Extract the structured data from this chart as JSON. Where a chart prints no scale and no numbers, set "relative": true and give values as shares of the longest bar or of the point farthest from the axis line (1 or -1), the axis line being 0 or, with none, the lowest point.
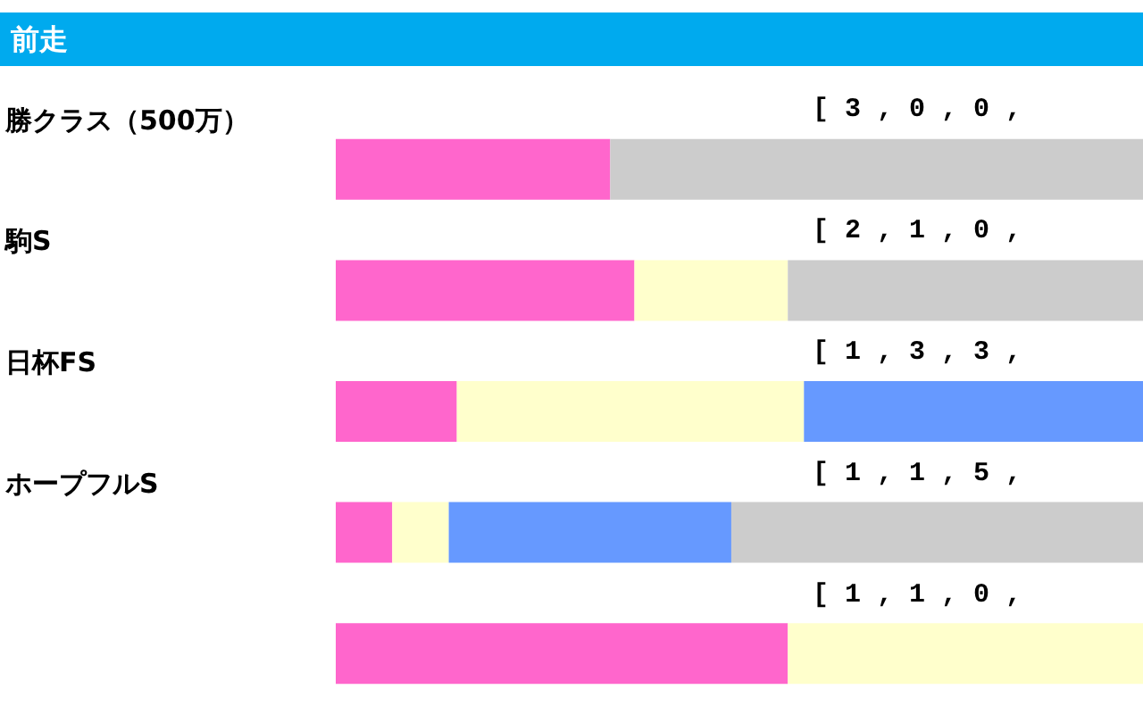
{
  "chart_data": {
    "type": "bar",
    "title": "前走",
    "orientation": "horizontal",
    "stacked": true,
    "relative": true,
    "categories": [
      "勝クラス（500万）",
      "駒S",
      "日杯FS",
      "ホープフルS",
      null
    ],
    "series": [
      {
        "color": "#ff66cc",
        "values": [
          0.34,
          0.37,
          0.15,
          0.07,
          0.56
        ]
      },
      {
        "color": "#ffffcc",
        "values": [
          0,
          0.19,
          0.43,
          0.07,
          0.44
        ]
      },
      {
        "color": "#6699ff",
        "values": [
          0,
          0,
          0.42,
          0.35,
          0
        ]
      },
      {
        "color": "#cccccc",
        "values": [
          0.66,
          0.44,
          0,
          0.51,
          0
        ]
      }
    ],
    "annotations": [
      "[ 3 , 0 , 0 ,",
      "[ 2 , 1 , 0 ,",
      "[ 1 , 3 , 3 ,",
      "[ 1 , 1 , 5 ,",
      "[ 1 , 1 , 0 ,"
    ]
  }
}
